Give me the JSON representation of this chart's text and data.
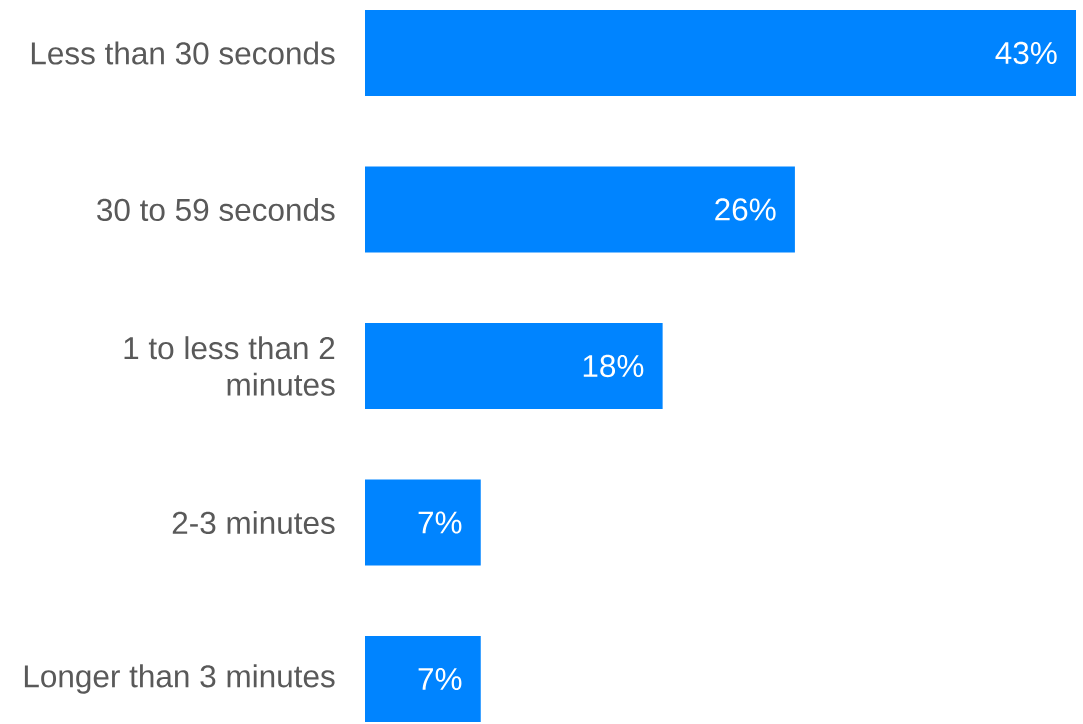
{
  "chart_data": {
    "type": "bar",
    "orientation": "horizontal",
    "categories": [
      "Less than 30 seconds",
      "30 to 59 seconds",
      "1 to less than 2 minutes",
      "2-3 minutes",
      "Longer than 3 minutes"
    ],
    "values": [
      43,
      26,
      18,
      7,
      7
    ],
    "color": "#0084ff",
    "value_labels": [
      "43%",
      "26%",
      "18%",
      "7%",
      "7%"
    ]
  }
}
